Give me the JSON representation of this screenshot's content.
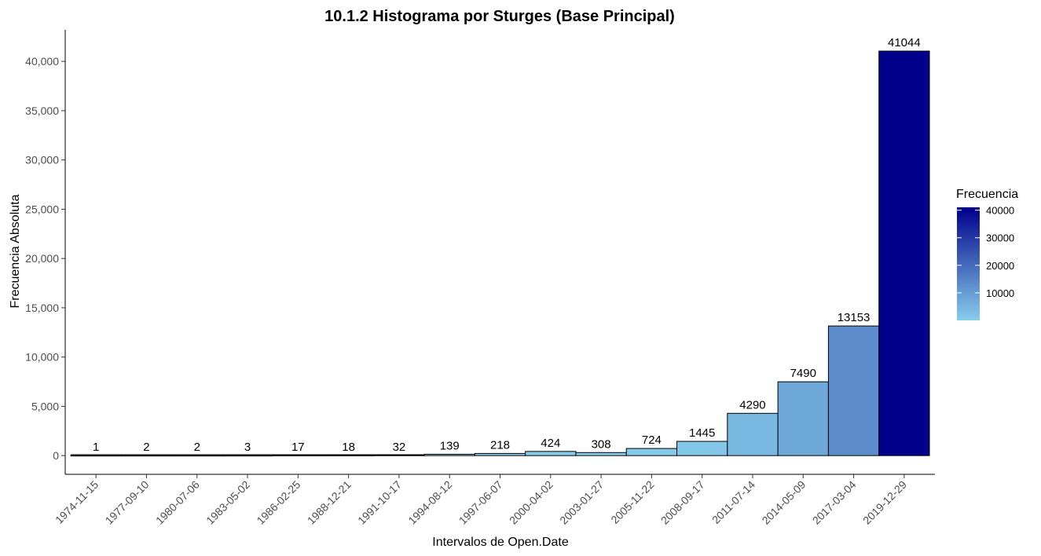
{
  "chart_data": {
    "type": "bar",
    "title": "10.1.2 Histograma por Sturges (Base Principal)",
    "xlabel": "Intervalos de Open.Date",
    "ylabel": "Frecuencia Absoluta",
    "categories": [
      "1974-11-15",
      "1977-09-10",
      "1980-07-06",
      "1983-05-02",
      "1986-02-25",
      "1988-12-21",
      "1991-10-17",
      "1994-08-12",
      "1997-06-07",
      "2000-04-02",
      "2003-01-27",
      "2005-11-22",
      "2008-09-17",
      "2011-07-14",
      "2014-05-09",
      "2017-03-04",
      "2019-12-29"
    ],
    "values": [
      1,
      2,
      2,
      3,
      17,
      18,
      32,
      139,
      218,
      424,
      308,
      724,
      1445,
      4290,
      7490,
      13153,
      41044
    ],
    "data_labels": [
      "1",
      "2",
      "2",
      "3",
      "17",
      "18",
      "32",
      "139",
      "218",
      "424",
      "308",
      "724",
      "1445",
      "4290",
      "7490",
      "13153",
      "41044"
    ],
    "ylim": [
      -1900,
      43200
    ],
    "yticks": [
      0,
      5000,
      10000,
      15000,
      20000,
      25000,
      30000,
      35000,
      40000
    ],
    "ytick_labels": [
      "0",
      "5,000",
      "10,000",
      "15,000",
      "20,000",
      "25,000",
      "30,000",
      "35,000",
      "40,000"
    ],
    "grid": false,
    "legend": {
      "title": "Frecuencia",
      "placement": "right",
      "min": 1,
      "max": 41044,
      "ticks": [
        10000,
        20000,
        30000,
        40000
      ],
      "tick_labels": [
        "10000",
        "20000",
        "30000",
        "40000"
      ],
      "color_low": "#87ceeb",
      "color_high": "#00008b"
    }
  }
}
